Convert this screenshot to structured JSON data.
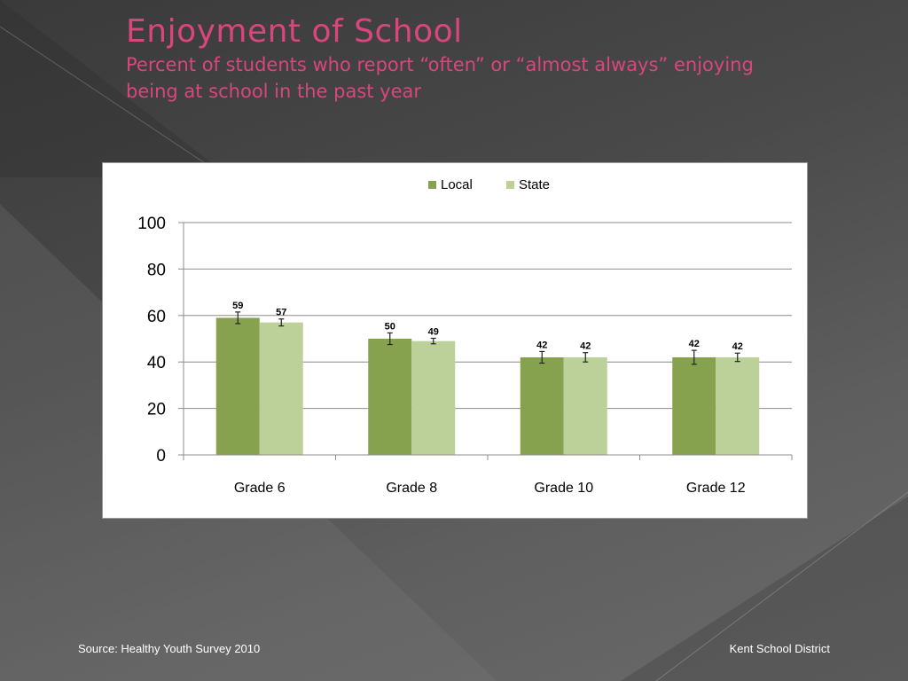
{
  "slide": {
    "title": "Enjoyment of School",
    "subtitle_lines": [
      "Percent of students who report “often” or “almost always” enjoying",
      "being at school in the past year"
    ],
    "source": "Source: Healthy Youth Survey 2010",
    "district": "Kent School District"
  },
  "colors": {
    "local": "#86a24e",
    "state": "#bcd19a",
    "title": "#d9467e"
  },
  "chart_data": {
    "type": "bar",
    "categories": [
      "Grade 6",
      "Grade 8",
      "Grade 10",
      "Grade 12"
    ],
    "series": [
      {
        "name": "Local",
        "values": [
          59,
          50,
          42,
          42
        ],
        "error": [
          2.5,
          2.5,
          2.5,
          3
        ]
      },
      {
        "name": "State",
        "values": [
          57,
          49,
          42,
          42
        ],
        "error": [
          1.5,
          1.2,
          2,
          1.8
        ]
      }
    ],
    "ylim": [
      0,
      100
    ],
    "yticks": [
      0,
      20,
      40,
      60,
      80,
      100
    ],
    "grid": true,
    "legend_position": "top"
  }
}
